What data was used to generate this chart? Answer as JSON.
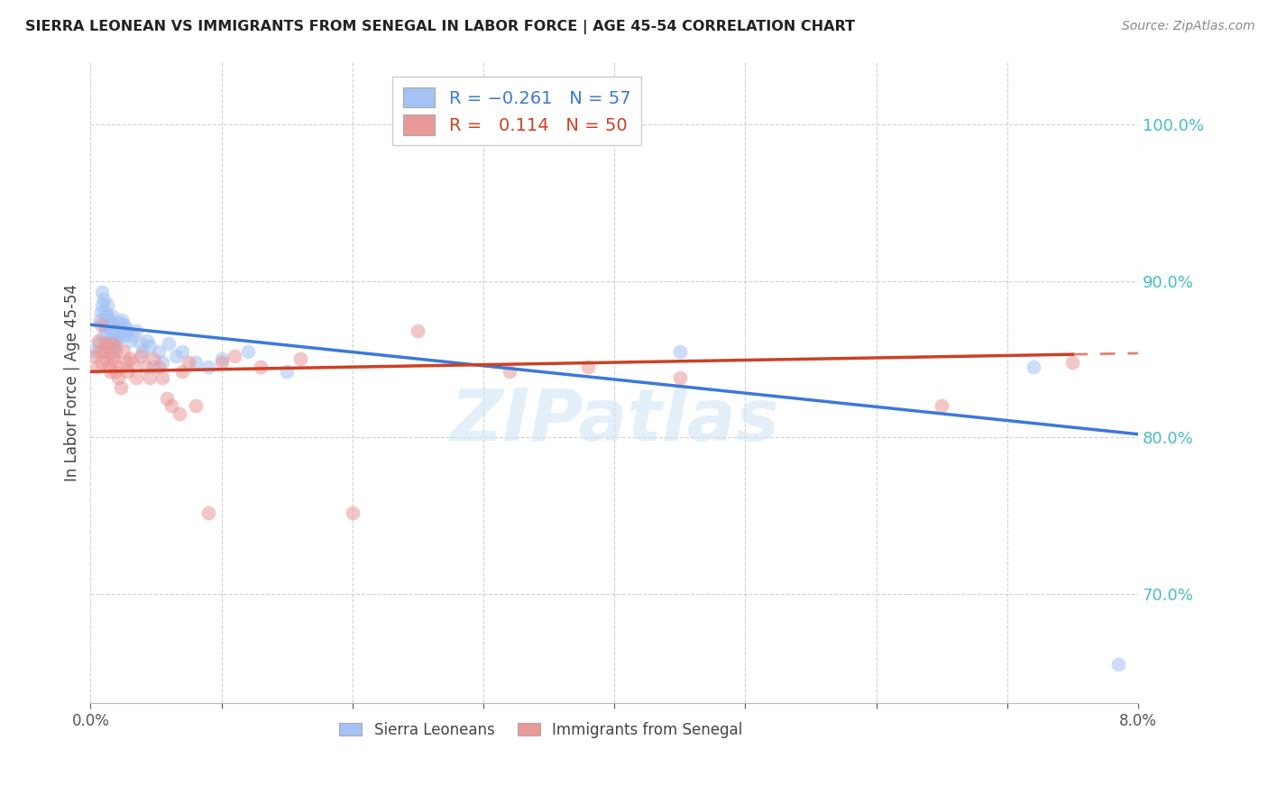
{
  "title": "SIERRA LEONEAN VS IMMIGRANTS FROM SENEGAL IN LABOR FORCE | AGE 45-54 CORRELATION CHART",
  "source": "Source: ZipAtlas.com",
  "ylabel": "In Labor Force | Age 45-54",
  "ytick_vals": [
    70.0,
    80.0,
    90.0,
    100.0
  ],
  "xlim": [
    0.0,
    8.0
  ],
  "ylim": [
    63.0,
    104.0
  ],
  "sierra_R": -0.261,
  "sierra_N": 57,
  "senegal_R": 0.114,
  "senegal_N": 50,
  "sierra_color": "#a4c2f4",
  "senegal_color": "#ea9999",
  "sierra_line_color": "#3c78d8",
  "senegal_line_color": "#cc4125",
  "watermark": "ZIPatlas",
  "sierra_trendline_x0": 0.0,
  "sierra_trendline_y0": 87.2,
  "sierra_trendline_x1": 8.0,
  "sierra_trendline_y1": 80.2,
  "senegal_trendline_x0": 0.0,
  "senegal_trendline_y0": 84.2,
  "senegal_trendline_x1": 7.5,
  "senegal_trendline_y1": 85.3,
  "senegal_solid_end": 7.5,
  "sierra_x": [
    0.04,
    0.06,
    0.07,
    0.08,
    0.09,
    0.09,
    0.1,
    0.1,
    0.11,
    0.11,
    0.12,
    0.12,
    0.13,
    0.13,
    0.14,
    0.14,
    0.15,
    0.15,
    0.16,
    0.16,
    0.17,
    0.17,
    0.18,
    0.18,
    0.19,
    0.19,
    0.2,
    0.2,
    0.21,
    0.22,
    0.23,
    0.24,
    0.25,
    0.26,
    0.27,
    0.28,
    0.3,
    0.32,
    0.35,
    0.38,
    0.4,
    0.43,
    0.45,
    0.48,
    0.52,
    0.55,
    0.6,
    0.65,
    0.7,
    0.8,
    0.9,
    1.0,
    1.2,
    1.5,
    4.5,
    7.2,
    7.85
  ],
  "sierra_y": [
    85.5,
    86.0,
    87.5,
    88.0,
    88.5,
    89.3,
    86.5,
    88.8,
    87.2,
    88.0,
    86.8,
    87.5,
    87.8,
    88.5,
    85.5,
    87.0,
    86.2,
    87.5,
    86.5,
    87.8,
    85.8,
    87.2,
    86.0,
    87.0,
    85.5,
    86.5,
    86.2,
    87.0,
    86.5,
    87.3,
    86.8,
    87.5,
    87.2,
    86.5,
    87.0,
    86.8,
    86.2,
    86.5,
    86.8,
    86.0,
    85.5,
    86.2,
    85.8,
    84.5,
    85.5,
    84.8,
    86.0,
    85.2,
    85.5,
    84.8,
    84.5,
    85.0,
    85.5,
    84.2,
    85.5,
    84.5,
    65.5
  ],
  "senegal_x": [
    0.03,
    0.05,
    0.06,
    0.07,
    0.08,
    0.09,
    0.1,
    0.11,
    0.12,
    0.13,
    0.14,
    0.15,
    0.16,
    0.17,
    0.18,
    0.19,
    0.2,
    0.21,
    0.22,
    0.23,
    0.25,
    0.27,
    0.28,
    0.3,
    0.32,
    0.35,
    0.38,
    0.42,
    0.45,
    0.48,
    0.52,
    0.55,
    0.58,
    0.62,
    0.68,
    0.7,
    0.75,
    0.8,
    0.9,
    1.0,
    1.1,
    1.3,
    1.6,
    2.0,
    2.5,
    3.2,
    3.8,
    4.5,
    6.5,
    7.5
  ],
  "senegal_y": [
    85.2,
    84.5,
    86.2,
    85.5,
    87.2,
    84.8,
    85.5,
    86.0,
    85.0,
    85.8,
    84.5,
    84.2,
    86.0,
    85.2,
    85.0,
    84.2,
    85.8,
    83.8,
    84.5,
    83.2,
    85.5,
    84.8,
    84.2,
    85.0,
    84.8,
    83.8,
    85.2,
    84.5,
    83.8,
    85.0,
    84.5,
    83.8,
    82.5,
    82.0,
    81.5,
    84.2,
    84.8,
    82.0,
    75.2,
    84.8,
    85.2,
    84.5,
    85.0,
    75.2,
    86.8,
    84.2,
    84.5,
    83.8,
    82.0,
    84.8
  ]
}
